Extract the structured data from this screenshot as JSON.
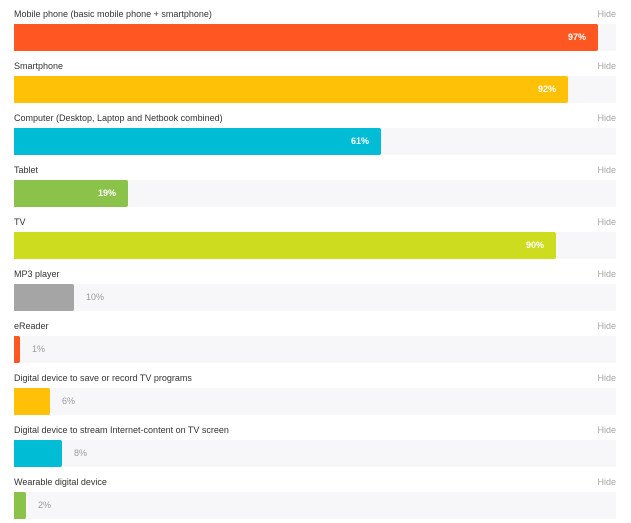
{
  "chart_data": {
    "type": "bar",
    "orientation": "horizontal",
    "categories": [
      "Mobile phone (basic mobile phone + smartphone)",
      "Smartphone",
      "Computer (Desktop, Laptop and Netbook combined)",
      "Tablet",
      "TV",
      "MP3 player",
      "eReader",
      "Digital device to save or record TV programs",
      "Digital device to stream Internet-content on TV screen",
      "Wearable digital device"
    ],
    "values": [
      97,
      92,
      61,
      19,
      90,
      10,
      1,
      6,
      8,
      2
    ],
    "value_labels": [
      "97%",
      "92%",
      "61%",
      "19%",
      "90%",
      "10%",
      "1%",
      "6%",
      "8%",
      "2%"
    ],
    "colors": [
      "#ff5722",
      "#ffc107",
      "#00bcd4",
      "#8bc34a",
      "#cddc1f",
      "#a5a5a5",
      "#ff5722",
      "#ffc107",
      "#00bcd4",
      "#8bc34a"
    ],
    "xlim": [
      0,
      100
    ],
    "grid": false,
    "legend": "none"
  },
  "hide_label": "Hide"
}
